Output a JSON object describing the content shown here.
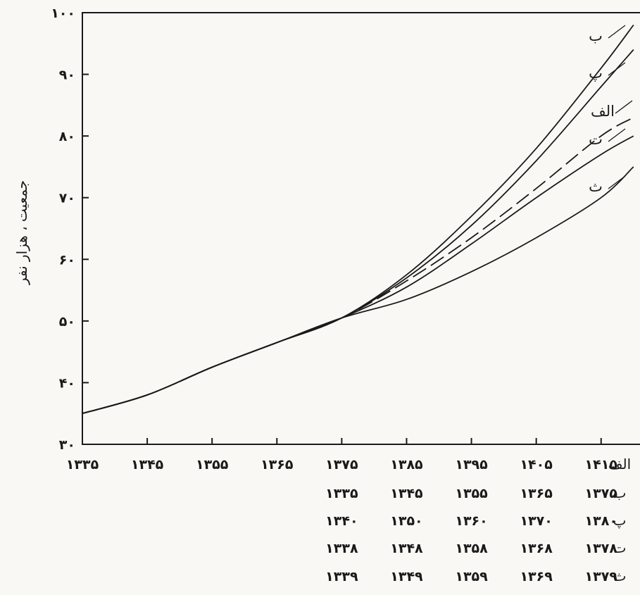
{
  "chart_data": {
    "type": "line",
    "title": "",
    "ylabel": "جمعیت ، هزار نفر",
    "ylim": [
      30,
      100
    ],
    "yticks": [
      {
        "value": 30,
        "label": "۳۰"
      },
      {
        "value": 40,
        "label": "۴۰"
      },
      {
        "value": 50,
        "label": "۵۰"
      },
      {
        "value": 60,
        "label": "۶۰"
      },
      {
        "value": 70,
        "label": "۷۰"
      },
      {
        "value": 80,
        "label": "۸۰"
      },
      {
        "value": 90,
        "label": "۹۰"
      },
      {
        "value": 100,
        "label": "۱۰۰"
      }
    ],
    "x_scale": [
      {
        "key": "alef",
        "label": "الف",
        "ticks": [
          "۱۳۳۵",
          "۱۳۴۵",
          "۱۳۵۵",
          "۱۳۶۵",
          "۱۳۷۵",
          "۱۳۸۵",
          "۱۳۹۵",
          "۱۴۰۵",
          "۱۴۱۵"
        ]
      },
      {
        "key": "be",
        "label": "ب",
        "ticks": [
          "۱۳۳۵",
          "۱۳۴۵",
          "۱۳۵۵",
          "۱۳۶۵",
          "۱۳۷۵"
        ]
      },
      {
        "key": "pe",
        "label": "پ",
        "ticks": [
          "۱۳۴۰",
          "۱۳۵۰",
          "۱۳۶۰",
          "۱۳۷۰",
          "۱۳۸۰"
        ]
      },
      {
        "key": "te",
        "label": "ت",
        "ticks": [
          "۱۳۳۸",
          "۱۳۴۸",
          "۱۳۵۸",
          "۱۳۶۸",
          "۱۳۷۸"
        ]
      },
      {
        "key": "se",
        "label": "ث",
        "ticks": [
          "۱۳۳۹",
          "۱۳۴۹",
          "۱۳۵۹",
          "۱۳۶۹",
          "۱۳۷۹"
        ]
      }
    ],
    "x": [
      1335,
      1345,
      1355,
      1365,
      1375,
      1385,
      1395,
      1405,
      1415,
      1420
    ],
    "series": [
      {
        "name": "ب",
        "style": "solid",
        "values": [
          35,
          38,
          42.5,
          46.5,
          50.5,
          57.5,
          67,
          78,
          91,
          98
        ]
      },
      {
        "name": "پ",
        "style": "solid",
        "values": [
          35,
          38,
          42.5,
          46.5,
          50.5,
          57,
          65.5,
          76,
          88,
          94
        ]
      },
      {
        "name": "الف",
        "style": "dashed",
        "values": [
          35,
          38,
          42.5,
          46.5,
          50.5,
          56.5,
          63.5,
          71.5,
          80,
          83
        ]
      },
      {
        "name": "ت",
        "style": "solid",
        "values": [
          35,
          38,
          42.5,
          46.5,
          50.5,
          55.5,
          62.5,
          70,
          77,
          80
        ]
      },
      {
        "name": "ث",
        "style": "solid",
        "values": [
          35,
          38,
          42.5,
          46.5,
          50.5,
          53.5,
          58,
          63.5,
          70,
          75
        ]
      }
    ]
  }
}
